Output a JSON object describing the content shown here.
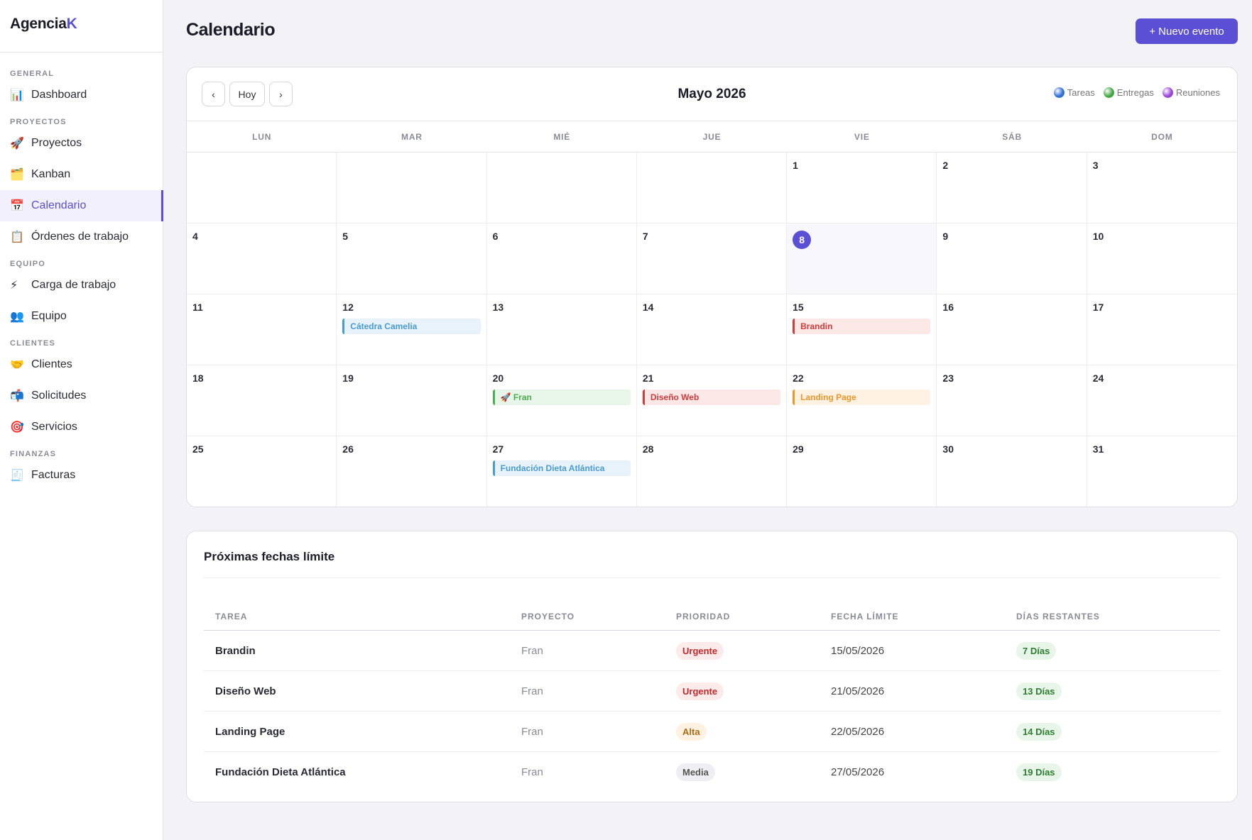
{
  "brand": {
    "prefix": "Agencia",
    "accent": "K"
  },
  "sidebar": {
    "sections": [
      {
        "label": "GENERAL",
        "items": [
          {
            "label": "Dashboard",
            "icon": "📊",
            "icon_name": "chart-icon"
          }
        ]
      },
      {
        "label": "PROYECTOS",
        "items": [
          {
            "label": "Proyectos",
            "icon": "🚀",
            "icon_name": "rocket-icon"
          },
          {
            "label": "Kanban",
            "icon": "🗂️",
            "icon_name": "card-index-icon"
          },
          {
            "label": "Calendario",
            "icon": "📅",
            "icon_name": "calendar-icon",
            "active": true
          },
          {
            "label": "Órdenes de trabajo",
            "icon": "📋",
            "icon_name": "clipboard-icon"
          }
        ]
      },
      {
        "label": "EQUIPO",
        "items": [
          {
            "label": "Carga de trabajo",
            "icon": "⚡",
            "icon_name": "lightning-icon"
          },
          {
            "label": "Equipo",
            "icon": "👥",
            "icon_name": "people-icon"
          }
        ]
      },
      {
        "label": "CLIENTES",
        "items": [
          {
            "label": "Clientes",
            "icon": "🤝",
            "icon_name": "handshake-icon"
          },
          {
            "label": "Solicitudes",
            "icon": "📬",
            "icon_name": "mailbox-icon"
          },
          {
            "label": "Servicios",
            "icon": "🎯",
            "icon_name": "target-icon"
          }
        ]
      },
      {
        "label": "FINANZAS",
        "items": [
          {
            "label": "Facturas",
            "icon": "🧾",
            "icon_name": "receipt-icon"
          }
        ]
      }
    ]
  },
  "header": {
    "title": "Calendario",
    "new_event_label": "+ Nuevo evento"
  },
  "calendar": {
    "prev_label": "‹",
    "today_label": "Hoy",
    "next_label": "›",
    "month_label": "Mayo 2026",
    "legend": [
      {
        "label": "Tareas",
        "color": "#2f6fd6"
      },
      {
        "label": "Entregas",
        "color": "#43a843"
      },
      {
        "label": "Reuniones",
        "color": "#9a45d8"
      }
    ],
    "weekdays": [
      "LUN",
      "MAR",
      "MIÉ",
      "JUE",
      "VIE",
      "SÁB",
      "DOM"
    ],
    "leading_blank_days": 4,
    "days_in_month": 31,
    "today": 8,
    "events": [
      {
        "day": 12,
        "label": "Cátedra Camelia",
        "color": "blue"
      },
      {
        "day": 15,
        "label": "Brandin",
        "color": "red"
      },
      {
        "day": 20,
        "label": "🚀 Fran",
        "color": "green"
      },
      {
        "day": 21,
        "label": "Diseño Web",
        "color": "red"
      },
      {
        "day": 22,
        "label": "Landing Page",
        "color": "orange"
      },
      {
        "day": 27,
        "label": "Fundación Dieta Atlántica",
        "color": "blue"
      }
    ]
  },
  "deadlines": {
    "title": "Próximas fechas límite",
    "columns": [
      "TAREA",
      "PROYECTO",
      "PRIORIDAD",
      "FECHA LÍMITE",
      "DÍAS RESTANTES"
    ],
    "rows": [
      {
        "task": "Brandin",
        "project": "Fran",
        "priority": "Urgente",
        "priority_level": "urg",
        "due": "15/05/2026",
        "days": "7 Días"
      },
      {
        "task": "Diseño Web",
        "project": "Fran",
        "priority": "Urgente",
        "priority_level": "urg",
        "due": "21/05/2026",
        "days": "13 Días"
      },
      {
        "task": "Landing Page",
        "project": "Fran",
        "priority": "Alta",
        "priority_level": "alta",
        "due": "22/05/2026",
        "days": "14 Días"
      },
      {
        "task": "Fundación Dieta Atlántica",
        "project": "Fran",
        "priority": "Media",
        "priority_level": "media",
        "due": "27/05/2026",
        "days": "19 Días"
      }
    ]
  }
}
